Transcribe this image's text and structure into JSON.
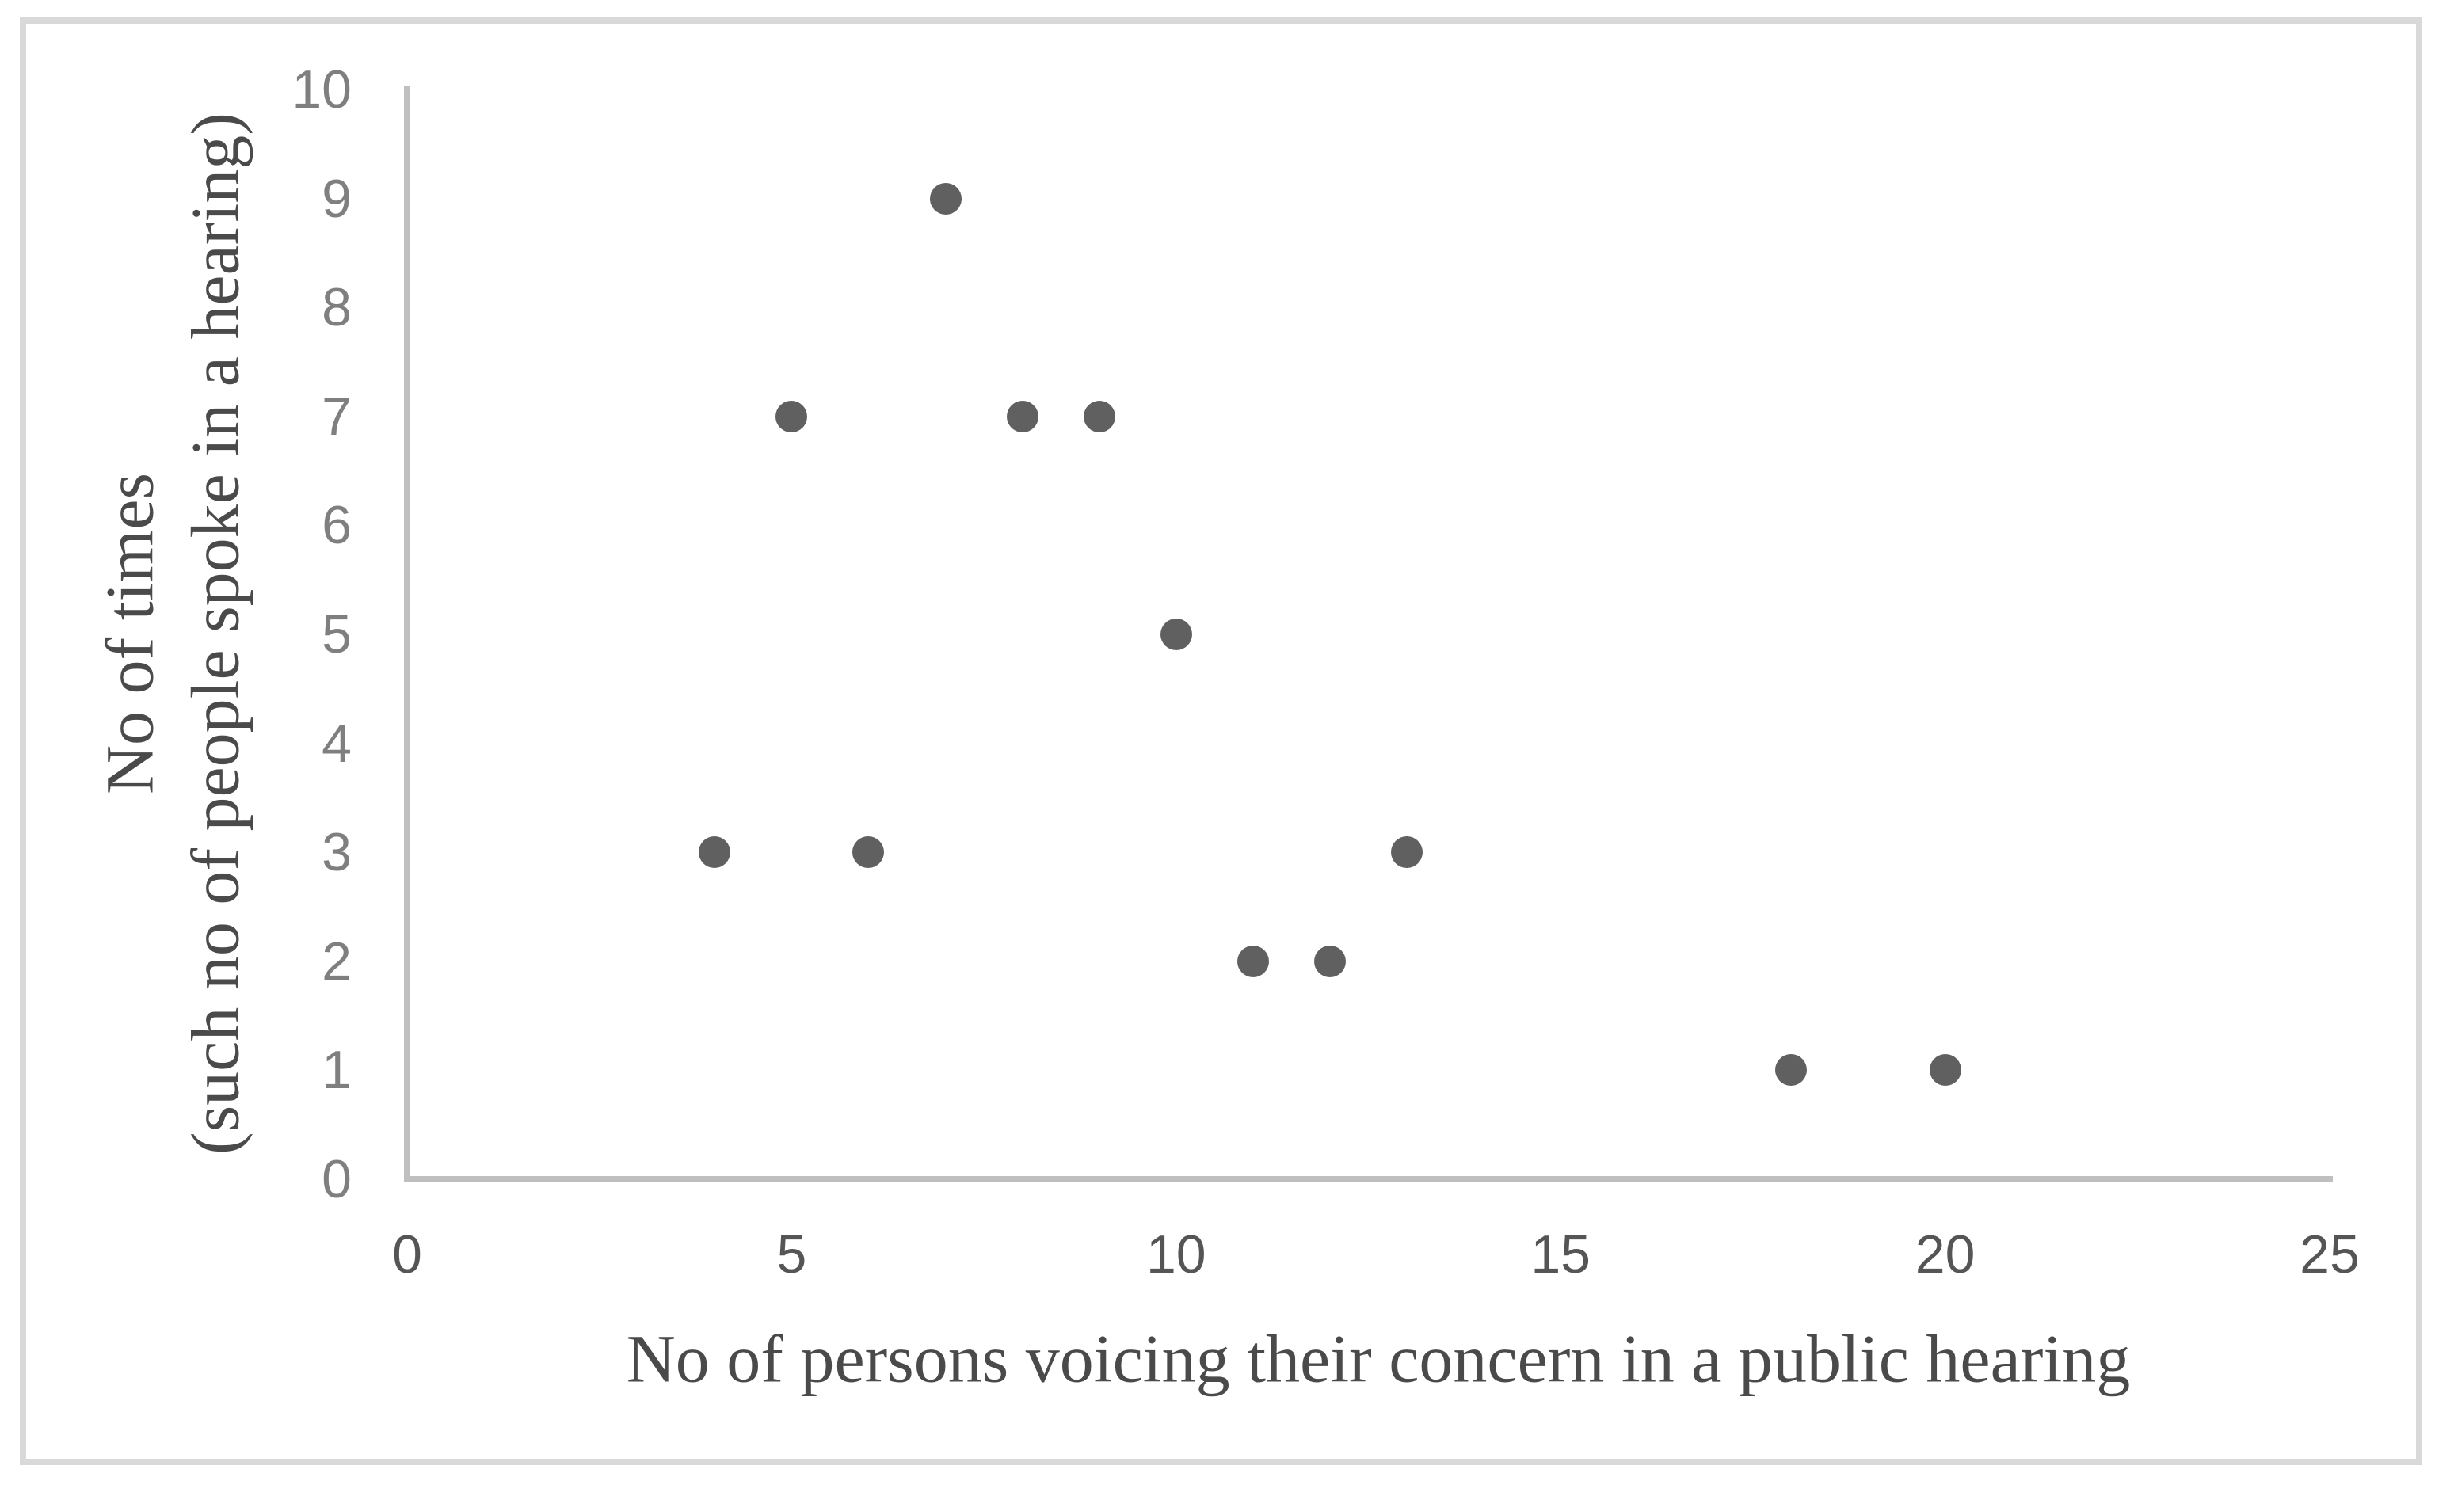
{
  "chart_data": {
    "type": "scatter",
    "title": "",
    "xlabel": "No of persons voicing their concern in a public hearing",
    "ylabel_lines": [
      "No of times",
      "(such no of people spoke in a hearing)"
    ],
    "xlim": [
      0,
      25
    ],
    "ylim": [
      0,
      10
    ],
    "x_ticks": [
      0,
      5,
      10,
      15,
      20,
      25
    ],
    "y_ticks": [
      0,
      1,
      2,
      3,
      4,
      5,
      6,
      7,
      8,
      9,
      10
    ],
    "grid": false,
    "legend": null,
    "marker_color": "#606060",
    "points": [
      {
        "x": 4,
        "y": 3
      },
      {
        "x": 5,
        "y": 7
      },
      {
        "x": 6,
        "y": 3
      },
      {
        "x": 7,
        "y": 9
      },
      {
        "x": 8,
        "y": 7
      },
      {
        "x": 9,
        "y": 7
      },
      {
        "x": 10,
        "y": 5
      },
      {
        "x": 11,
        "y": 2
      },
      {
        "x": 12,
        "y": 2
      },
      {
        "x": 13,
        "y": 3
      },
      {
        "x": 18,
        "y": 1
      },
      {
        "x": 20,
        "y": 1
      }
    ]
  },
  "colors": {
    "background": "#ffffff",
    "frame_border": "#d9d9d9",
    "axis_line": "#bfbfbf",
    "x_tick_label": "#555555",
    "y_tick_label": "#7f7f7f",
    "axis_title": "#4a4a4a"
  }
}
